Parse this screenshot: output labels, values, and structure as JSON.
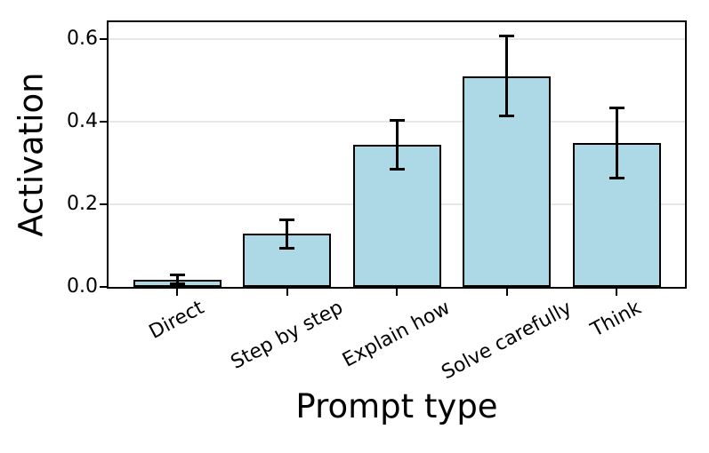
{
  "chart_data": {
    "type": "bar",
    "title": "",
    "xlabel": "Prompt type",
    "ylabel": "Activation",
    "categories": [
      "Direct",
      "Step by step",
      "Explain how",
      "Solve carefully",
      "Think"
    ],
    "values": [
      0.018,
      0.128,
      0.343,
      0.51,
      0.347
    ],
    "errors": [
      0.012,
      0.036,
      0.06,
      0.097,
      0.086
    ],
    "error_bars": true,
    "ylim": [
      0,
      0.64
    ],
    "yticks": [
      0,
      0.2,
      0.4,
      0.6
    ],
    "ytick_labels": [
      "0.0",
      "0.2",
      "0.4",
      "0.6"
    ],
    "grid": "horizontal-only",
    "legend": "none",
    "xtick_rotation_deg": 28,
    "colors": {
      "bar_fill": "#add8e6",
      "bar_edge": "#000000",
      "errorbar": "#000000",
      "gridline": "#e7e7e7",
      "axis": "#000000",
      "text": "#000000"
    }
  }
}
